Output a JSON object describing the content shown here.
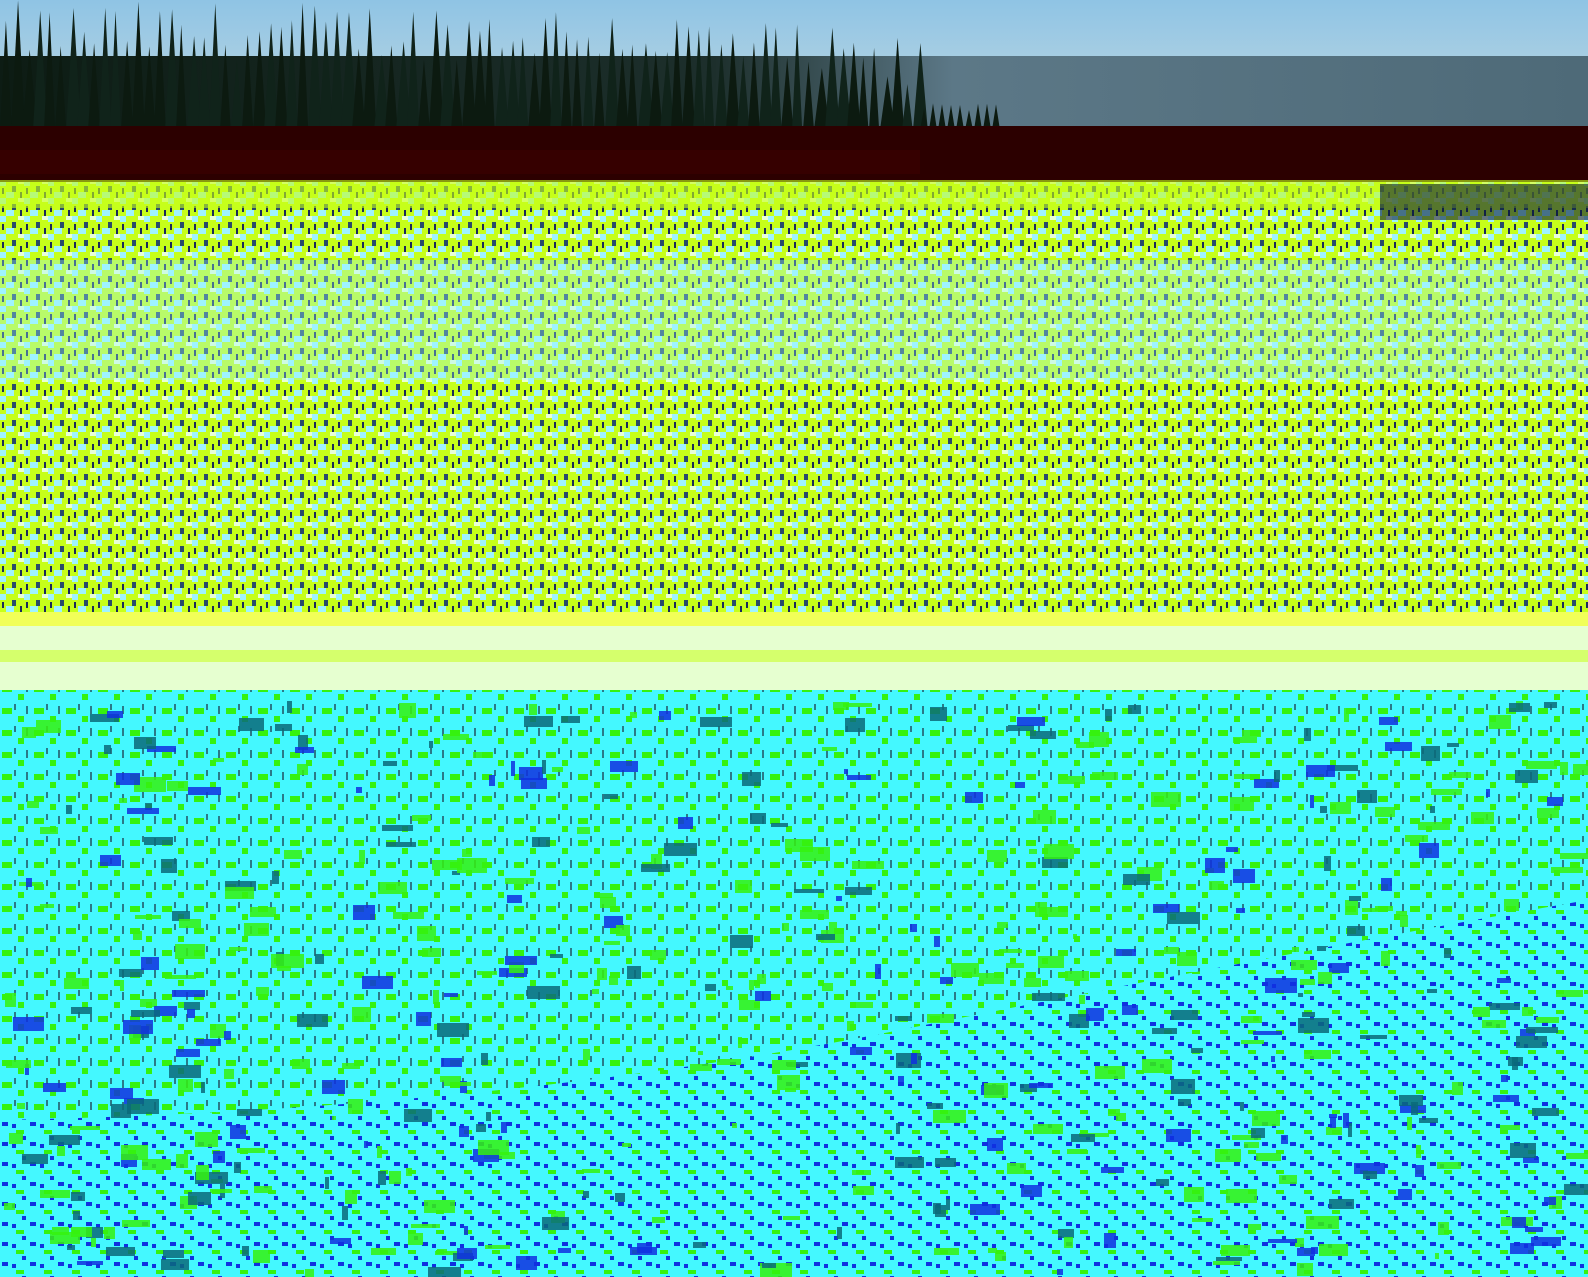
{
  "image": {
    "description_colors": {
      "sky_top": "#8fc4e4",
      "sky_bottom": "#b8d3df",
      "treeline": "#0c1a10",
      "dark_band": "#4c6878",
      "red_band": "#2c0000",
      "field_yellow_green": "#c6ff1a",
      "field_cyan": "#9ff3ff",
      "pale_strip": "#e6ffd0",
      "water_cyan": "#44f8ff",
      "noise_green": "#35f20f",
      "noise_blue": "#1030e0"
    }
  }
}
